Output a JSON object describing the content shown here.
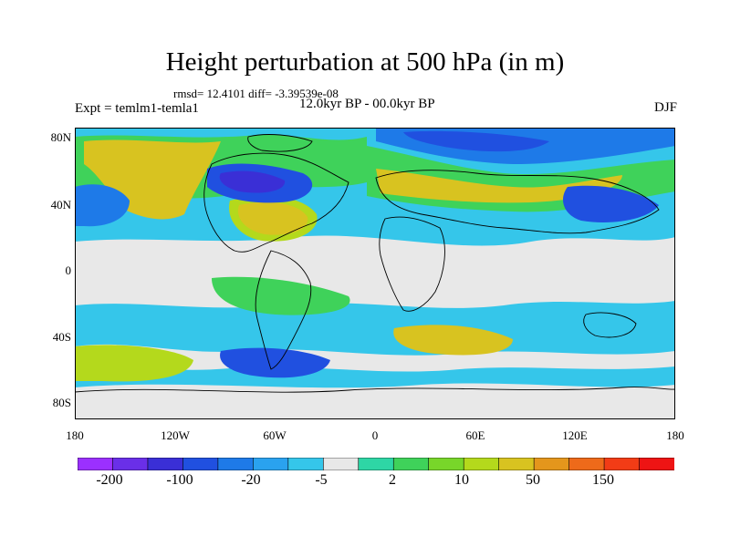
{
  "title": "Height perturbation at 500 hPa (in m)",
  "stats": "rmsd= 12.4101 diff= -3.39539e-08",
  "experiment": "Expt = temlm1-temla1",
  "period": "12.0kyr BP - 00.0kyr BP",
  "season": "DJF",
  "lat_ticks": [
    "80N",
    "40N",
    "0",
    "40S",
    "80S"
  ],
  "lon_ticks": [
    "180",
    "120W",
    "60W",
    "0",
    "60E",
    "120E",
    "180"
  ],
  "colorbar": {
    "colors": [
      "#9b30ff",
      "#6a2fe8",
      "#3a2fd6",
      "#2050e0",
      "#1e7ae8",
      "#2aa2ef",
      "#35c6ea",
      "#e8e8e8",
      "#2ed6a5",
      "#3fd25a",
      "#78d62a",
      "#b4d91c",
      "#d8c320",
      "#e4961c",
      "#ee6a1a",
      "#f23c16",
      "#ee1414"
    ],
    "labels": [
      "-200",
      "-100",
      "-20",
      "-5",
      "2",
      "10",
      "50",
      "150"
    ]
  },
  "colors": {
    "background": "#ffffff",
    "neutral": "#e8e8e8",
    "coastline": "#000000"
  }
}
